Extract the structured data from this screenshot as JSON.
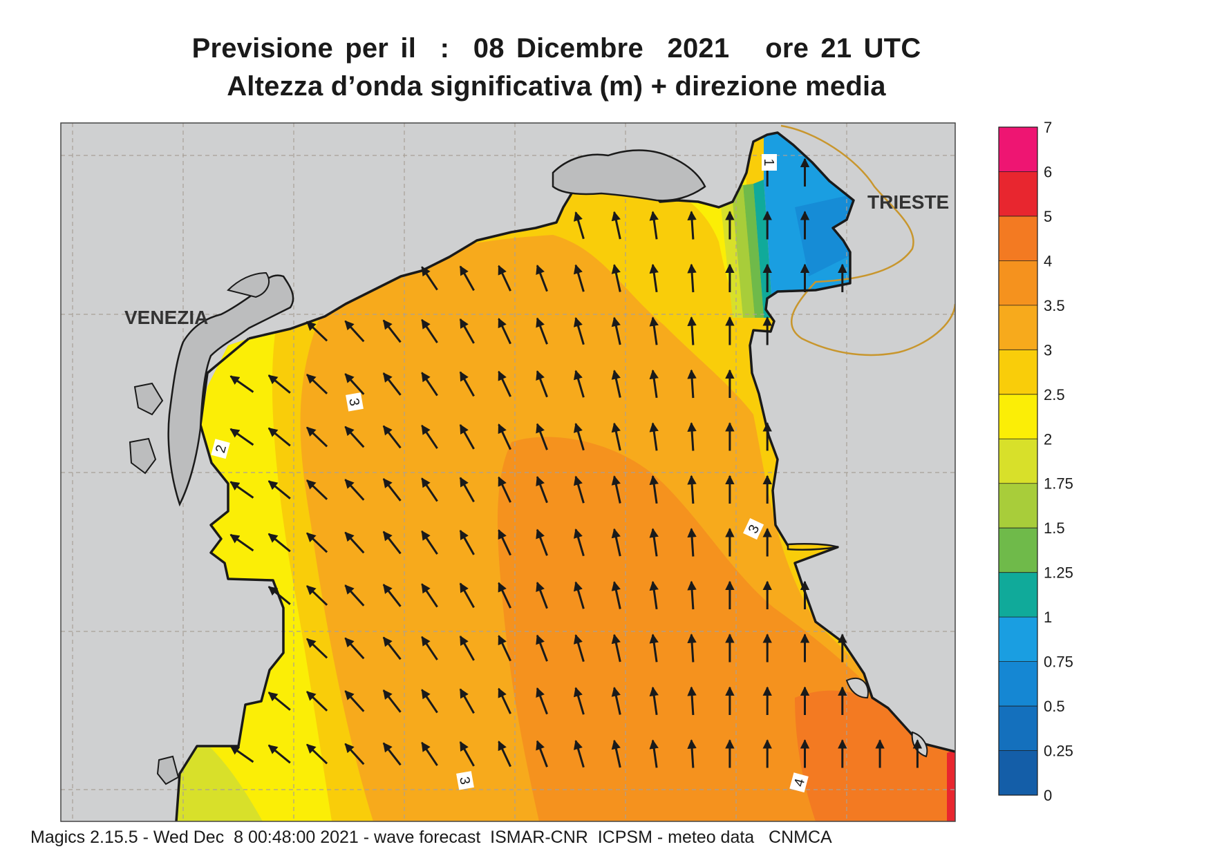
{
  "title": {
    "line1": "Previsione per il  :  08 Dicembre  2021   ore 21 UTC",
    "line2": "Altezza d’onda significativa (m) + direzione media"
  },
  "places": [
    {
      "name": "VENEZIA"
    },
    {
      "name": "TRIESTE"
    }
  ],
  "contour_labels": [
    "1",
    "2",
    "3",
    "3",
    "3",
    "4"
  ],
  "legend": {
    "ticks": [
      "7",
      "6",
      "5",
      "4",
      "3.5",
      "3",
      "2.5",
      "2",
      "1.75",
      "1.5",
      "1.25",
      "1",
      "0.75",
      "0.5",
      "0.25",
      "0"
    ],
    "colors": [
      "#ee1572",
      "#e8262f",
      "#f37a22",
      "#f5921e",
      "#f7aa1c",
      "#f9cd0a",
      "#fbee06",
      "#d8e02a",
      "#a8cd3a",
      "#6fba4a",
      "#10aa9a",
      "#1a9ee1",
      "#1587d3",
      "#1470bd",
      "#145ea8"
    ]
  },
  "colors": {
    "land": "#cfd0d1",
    "sea_max": "#f37a22",
    "sea_min": "#1587d3",
    "arrow": "#1a1a1a",
    "grid": "#a8a098",
    "border": "#c8962d"
  },
  "footer": "Magics 2.15.5 - Wed Dec  8 00:48:00 2021 - wave forecast  ISMAR-CNR  ICPSM - meteo data   CNMCA"
}
